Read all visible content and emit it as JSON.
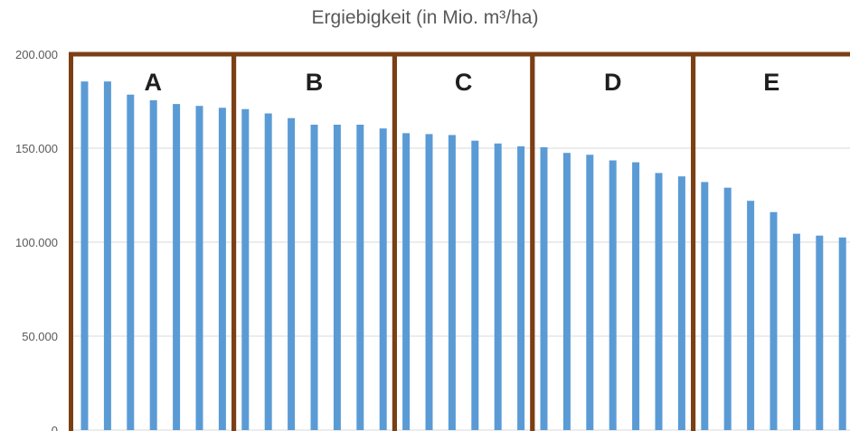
{
  "chart_data": {
    "type": "bar",
    "title": "Ergiebigkeit (in Mio. m³/ha)",
    "xlabel": "",
    "ylabel": "",
    "ylim": [
      0,
      200000
    ],
    "yticks": [
      {
        "value": 0,
        "label": "0"
      },
      {
        "value": 50000,
        "label": "50.000"
      },
      {
        "value": 100000,
        "label": "100.000"
      },
      {
        "value": 150000,
        "label": "150.000"
      },
      {
        "value": 200000,
        "label": "200.000"
      }
    ],
    "grid": true,
    "values": [
      185500,
      185500,
      178500,
      175500,
      173500,
      172500,
      171500,
      170800,
      168500,
      166000,
      162500,
      162500,
      162500,
      160500,
      158000,
      157500,
      157000,
      154000,
      152500,
      151000,
      150500,
      147500,
      146500,
      143500,
      142500,
      136800,
      135000,
      132000,
      129000,
      122000,
      116000,
      104500,
      103500,
      102500
    ],
    "groups": [
      {
        "label": "A",
        "start": 0,
        "end": 6
      },
      {
        "label": "B",
        "start": 7,
        "end": 13
      },
      {
        "label": "C",
        "start": 14,
        "end": 19
      },
      {
        "label": "D",
        "start": 20,
        "end": 26
      },
      {
        "label": "E",
        "start": 27,
        "end": 33
      }
    ],
    "colors": {
      "bar": "#5b9bd5",
      "frame": "#7b3f14",
      "grid": "#d9d9d9",
      "axis": "#bfbfbf"
    }
  }
}
